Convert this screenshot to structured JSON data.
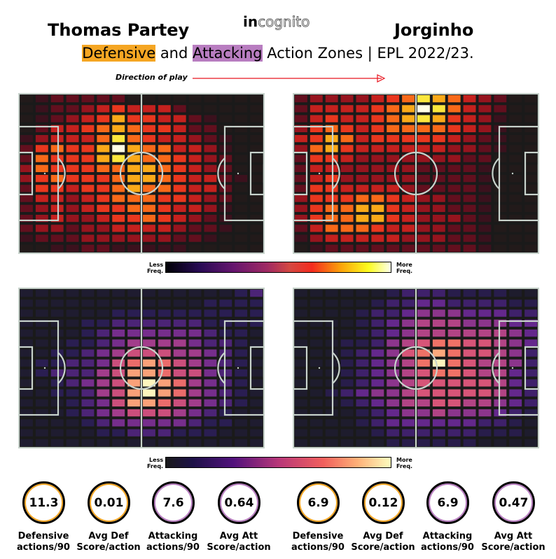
{
  "header": {
    "player_left": "Thomas Partey",
    "player_right": "Jorginho",
    "logo_bold": "in",
    "logo_outline": "cognito",
    "subtitle_def": "Defensive",
    "subtitle_and": " and ",
    "subtitle_att": "Attacking",
    "subtitle_rest": " Action Zones | EPL 2022/23.",
    "direction": "Direction of play"
  },
  "colorbar": {
    "less": "Less",
    "freq": "Freq.",
    "more": "More"
  },
  "colors": {
    "defensive_highlight": "#f5a623",
    "attacking_highlight": "#b87dc0",
    "pitch_bg": "#1a1a1a",
    "pitch_lines": "#c8d3cc",
    "arrow": "#e8141e"
  },
  "chart_data": [
    {
      "type": "heatmap",
      "title": "Thomas Partey — Defensive",
      "colormap": "inferno",
      "rows": 16,
      "cols": 16,
      "values": [
        [
          1,
          2,
          3,
          3,
          3,
          3,
          3,
          1,
          1,
          1,
          1,
          1,
          1,
          1,
          1,
          1
        ],
        [
          1,
          2,
          3,
          3,
          4,
          5,
          6,
          5,
          5,
          5,
          3,
          1,
          1,
          1,
          1,
          1
        ],
        [
          1,
          2,
          3,
          4,
          5,
          6,
          8,
          6,
          6,
          5,
          5,
          3,
          2,
          1,
          1,
          1
        ],
        [
          1,
          3,
          5,
          5,
          6,
          7,
          8,
          7,
          6,
          6,
          5,
          3,
          3,
          1,
          1,
          1
        ],
        [
          2,
          4,
          5,
          5,
          5,
          7,
          9,
          7,
          6,
          5,
          5,
          4,
          3,
          2,
          1,
          1
        ],
        [
          3,
          6,
          7,
          6,
          6,
          8,
          10,
          8,
          7,
          7,
          5,
          5,
          4,
          2,
          1,
          1
        ],
        [
          3,
          7,
          6,
          6,
          6,
          8,
          9,
          8,
          7,
          7,
          6,
          5,
          4,
          3,
          1,
          1
        ],
        [
          4,
          7,
          6,
          6,
          6,
          7,
          7,
          8,
          8,
          7,
          6,
          5,
          4,
          3,
          1,
          1
        ],
        [
          4,
          6,
          7,
          6,
          6,
          6,
          7,
          8,
          8,
          7,
          6,
          5,
          5,
          3,
          2,
          1
        ],
        [
          3,
          6,
          6,
          5,
          6,
          6,
          7,
          8,
          7,
          7,
          6,
          5,
          5,
          3,
          1,
          1
        ],
        [
          3,
          5,
          5,
          4,
          5,
          6,
          7,
          7,
          7,
          6,
          6,
          5,
          4,
          3,
          1,
          1
        ],
        [
          3,
          4,
          5,
          4,
          5,
          6,
          6,
          7,
          7,
          6,
          5,
          5,
          4,
          2,
          1,
          1
        ],
        [
          3,
          4,
          5,
          4,
          4,
          5,
          6,
          6,
          7,
          6,
          5,
          4,
          3,
          2,
          1,
          1
        ],
        [
          3,
          4,
          4,
          3,
          4,
          4,
          5,
          5,
          5,
          5,
          4,
          3,
          3,
          2,
          1,
          1
        ],
        [
          2,
          3,
          3,
          3,
          4,
          4,
          4,
          4,
          4,
          4,
          3,
          3,
          2,
          1,
          1,
          1
        ],
        [
          1,
          1,
          2,
          2,
          3,
          3,
          2,
          2,
          2,
          2,
          2,
          1,
          1,
          1,
          1,
          1
        ]
      ]
    },
    {
      "type": "heatmap",
      "title": "Jorginho — Defensive",
      "colormap": "inferno",
      "rows": 16,
      "cols": 16,
      "values": [
        [
          3,
          4,
          4,
          4,
          4,
          5,
          6,
          7,
          9,
          8,
          7,
          5,
          4,
          3,
          1,
          1
        ],
        [
          3,
          5,
          5,
          5,
          5,
          6,
          7,
          8,
          10,
          9,
          7,
          5,
          4,
          3,
          1,
          1
        ],
        [
          3,
          5,
          6,
          5,
          5,
          6,
          7,
          8,
          9,
          8,
          6,
          5,
          4,
          2,
          1,
          1
        ],
        [
          4,
          6,
          7,
          6,
          5,
          6,
          7,
          7,
          7,
          7,
          6,
          5,
          4,
          2,
          1,
          1
        ],
        [
          5,
          6,
          8,
          7,
          5,
          6,
          6,
          6,
          6,
          6,
          5,
          4,
          3,
          2,
          1,
          1
        ],
        [
          4,
          7,
          8,
          6,
          5,
          5,
          5,
          5,
          5,
          5,
          4,
          4,
          3,
          2,
          1,
          1
        ],
        [
          3,
          6,
          6,
          5,
          4,
          4,
          4,
          4,
          4,
          4,
          4,
          3,
          3,
          1,
          1,
          1
        ],
        [
          3,
          5,
          5,
          4,
          4,
          4,
          4,
          4,
          3,
          3,
          3,
          3,
          2,
          1,
          1,
          1
        ],
        [
          3,
          5,
          6,
          4,
          4,
          4,
          4,
          4,
          3,
          3,
          3,
          3,
          2,
          1,
          1,
          1
        ],
        [
          3,
          6,
          6,
          5,
          5,
          5,
          5,
          4,
          3,
          3,
          3,
          3,
          2,
          1,
          1,
          1
        ],
        [
          4,
          6,
          6,
          6,
          7,
          7,
          6,
          5,
          4,
          4,
          3,
          3,
          2,
          1,
          1,
          1
        ],
        [
          4,
          6,
          7,
          7,
          8,
          8,
          6,
          5,
          4,
          4,
          3,
          3,
          2,
          1,
          1,
          1
        ],
        [
          4,
          6,
          7,
          7,
          8,
          8,
          6,
          5,
          4,
          4,
          4,
          3,
          2,
          1,
          1,
          1
        ],
        [
          3,
          5,
          7,
          7,
          7,
          6,
          5,
          5,
          4,
          4,
          3,
          3,
          2,
          1,
          1,
          1
        ],
        [
          2,
          4,
          5,
          5,
          5,
          5,
          5,
          4,
          4,
          4,
          3,
          3,
          2,
          1,
          1,
          1
        ],
        [
          1,
          2,
          3,
          3,
          3,
          3,
          3,
          3,
          3,
          3,
          3,
          3,
          2,
          1,
          1,
          1
        ]
      ]
    },
    {
      "type": "heatmap",
      "title": "Thomas Partey — Attacking",
      "colormap": "magma",
      "rows": 16,
      "cols": 16,
      "values": [
        [
          1,
          1,
          1,
          1,
          1,
          1,
          1,
          1,
          1,
          1,
          1,
          1,
          1,
          1,
          2,
          3
        ],
        [
          1,
          1,
          1,
          1,
          1,
          1,
          1,
          1,
          1,
          1,
          1,
          1,
          2,
          2,
          2,
          2
        ],
        [
          1,
          1,
          1,
          1,
          1,
          1,
          2,
          2,
          2,
          2,
          2,
          2,
          2,
          2,
          2,
          2
        ],
        [
          1,
          1,
          1,
          1,
          2,
          2,
          3,
          3,
          3,
          3,
          3,
          3,
          2,
          2,
          2,
          2
        ],
        [
          1,
          1,
          1,
          1,
          2,
          3,
          4,
          4,
          4,
          4,
          4,
          4,
          3,
          2,
          2,
          1
        ],
        [
          1,
          1,
          1,
          2,
          2,
          3,
          4,
          5,
          5,
          5,
          5,
          4,
          3,
          3,
          2,
          1
        ],
        [
          1,
          1,
          2,
          2,
          3,
          4,
          5,
          6,
          6,
          6,
          5,
          5,
          4,
          3,
          2,
          1
        ],
        [
          1,
          2,
          2,
          3,
          3,
          4,
          6,
          7,
          8,
          7,
          6,
          5,
          4,
          3,
          2,
          1
        ],
        [
          1,
          2,
          3,
          3,
          3,
          5,
          6,
          8,
          8,
          7,
          6,
          6,
          4,
          3,
          2,
          1
        ],
        [
          1,
          1,
          2,
          3,
          4,
          5,
          6,
          8,
          9,
          8,
          7,
          5,
          4,
          3,
          2,
          1
        ],
        [
          1,
          1,
          2,
          2,
          3,
          5,
          6,
          8,
          9,
          8,
          7,
          5,
          4,
          3,
          2,
          1
        ],
        [
          1,
          1,
          1,
          2,
          3,
          4,
          6,
          8,
          8,
          7,
          6,
          5,
          4,
          3,
          2,
          1
        ],
        [
          1,
          1,
          1,
          2,
          3,
          4,
          5,
          6,
          6,
          6,
          5,
          4,
          3,
          2,
          1,
          1
        ],
        [
          1,
          1,
          1,
          1,
          2,
          3,
          4,
          4,
          4,
          4,
          4,
          3,
          2,
          2,
          1,
          1
        ],
        [
          1,
          1,
          1,
          1,
          1,
          2,
          2,
          3,
          3,
          3,
          2,
          2,
          2,
          1,
          1,
          1
        ],
        [
          1,
          1,
          1,
          1,
          1,
          1,
          1,
          1,
          1,
          1,
          1,
          1,
          1,
          1,
          1,
          1
        ]
      ]
    },
    {
      "type": "heatmap",
      "title": "Jorginho — Attacking",
      "colormap": "magma",
      "rows": 16,
      "cols": 16,
      "values": [
        [
          1,
          1,
          1,
          1,
          1,
          1,
          2,
          3,
          3,
          3,
          2,
          2,
          2,
          2,
          1,
          1
        ],
        [
          1,
          1,
          1,
          1,
          1,
          2,
          3,
          3,
          4,
          4,
          3,
          3,
          3,
          3,
          2,
          2
        ],
        [
          1,
          1,
          1,
          1,
          2,
          3,
          3,
          4,
          5,
          5,
          5,
          4,
          4,
          4,
          3,
          3
        ],
        [
          1,
          1,
          1,
          1,
          2,
          3,
          4,
          5,
          6,
          6,
          6,
          5,
          5,
          5,
          4,
          4
        ],
        [
          1,
          1,
          1,
          1,
          2,
          3,
          4,
          5,
          6,
          6,
          6,
          6,
          6,
          6,
          5,
          4
        ],
        [
          1,
          1,
          1,
          2,
          2,
          3,
          5,
          6,
          7,
          8,
          8,
          7,
          7,
          6,
          5,
          4
        ],
        [
          1,
          1,
          1,
          2,
          3,
          4,
          5,
          7,
          8,
          9,
          8,
          7,
          7,
          6,
          5,
          3
        ],
        [
          1,
          1,
          1,
          2,
          3,
          4,
          5,
          6,
          8,
          10,
          8,
          7,
          6,
          6,
          5,
          3
        ],
        [
          1,
          1,
          1,
          2,
          3,
          4,
          5,
          6,
          7,
          8,
          8,
          7,
          6,
          6,
          4,
          3
        ],
        [
          1,
          1,
          1,
          2,
          3,
          4,
          5,
          6,
          7,
          7,
          7,
          7,
          7,
          6,
          4,
          3
        ],
        [
          1,
          1,
          2,
          3,
          4,
          5,
          5,
          6,
          7,
          7,
          7,
          7,
          7,
          6,
          4,
          3
        ],
        [
          1,
          1,
          1,
          2,
          3,
          4,
          5,
          6,
          6,
          7,
          7,
          6,
          6,
          5,
          4,
          3
        ],
        [
          1,
          1,
          1,
          1,
          2,
          3,
          4,
          5,
          5,
          6,
          5,
          5,
          5,
          4,
          3,
          2
        ],
        [
          1,
          1,
          1,
          1,
          2,
          3,
          4,
          4,
          4,
          4,
          4,
          4,
          3,
          3,
          2,
          1
        ],
        [
          1,
          1,
          1,
          1,
          1,
          2,
          3,
          3,
          3,
          3,
          3,
          3,
          2,
          2,
          2,
          1
        ],
        [
          1,
          1,
          1,
          1,
          1,
          1,
          2,
          2,
          2,
          2,
          2,
          2,
          1,
          1,
          1,
          1
        ]
      ]
    }
  ],
  "stats": [
    {
      "value": "11.3",
      "label1": "Defensive",
      "label2": "actions/90",
      "kind": "def"
    },
    {
      "value": "0.01",
      "label1": "Avg Def",
      "label2": "Score/action",
      "kind": "def"
    },
    {
      "value": "7.6",
      "label1": "Attacking",
      "label2": "actions/90",
      "kind": "att"
    },
    {
      "value": "0.64",
      "label1": "Avg Att",
      "label2": "Score/action",
      "kind": "att"
    },
    {
      "value": "6.9",
      "label1": "Defensive",
      "label2": "actions/90",
      "kind": "def"
    },
    {
      "value": "0.12",
      "label1": "Avg Def",
      "label2": "Score/action",
      "kind": "def"
    },
    {
      "value": "6.9",
      "label1": "Attacking",
      "label2": "actions/90",
      "kind": "att"
    },
    {
      "value": "0.47",
      "label1": "Avg Att",
      "label2": "Score/action",
      "kind": "att"
    }
  ]
}
